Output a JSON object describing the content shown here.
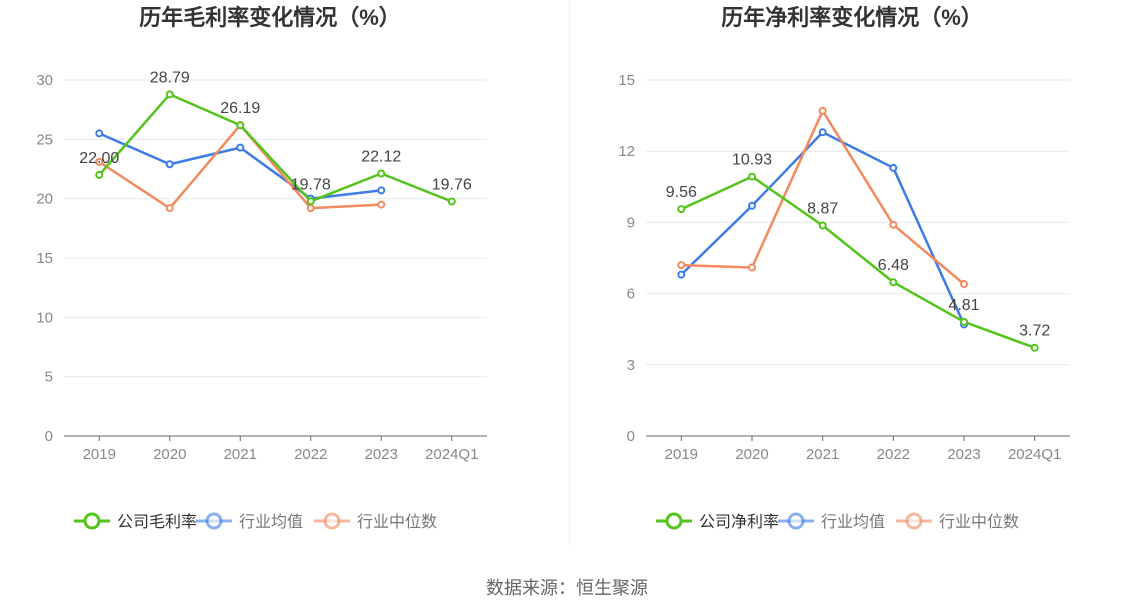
{
  "colors": {
    "company": "#52c41a",
    "avg": "#3d7ce6",
    "median": "#f28a5f"
  },
  "source": "数据来源：恒生聚源",
  "chart_data": [
    {
      "type": "line",
      "title": "历年毛利率变化情况（%）",
      "categories": [
        "2019",
        "2020",
        "2021",
        "2022",
        "2023",
        "2024Q1"
      ],
      "ylim": [
        0,
        30
      ],
      "yticks": [
        0,
        5,
        10,
        15,
        20,
        25,
        30
      ],
      "grid": true,
      "legend": "bottom",
      "series": [
        {
          "name": "公司毛利率",
          "color": "#52c41a",
          "values": [
            22.0,
            28.79,
            26.19,
            19.78,
            22.12,
            19.76
          ],
          "labels": [
            "22.00",
            "28.79",
            "26.19",
            "19.78",
            "22.12",
            "19.76"
          ]
        },
        {
          "name": "行业均值",
          "color": "#3d7ce6",
          "values": [
            25.5,
            22.9,
            24.3,
            20.0,
            20.7,
            null
          ]
        },
        {
          "name": "行业中位数",
          "color": "#f28a5f",
          "values": [
            23.1,
            19.2,
            26.2,
            19.2,
            19.5,
            null
          ]
        }
      ]
    },
    {
      "type": "line",
      "title": "历年净利率变化情况（%）",
      "categories": [
        "2019",
        "2020",
        "2021",
        "2022",
        "2023",
        "2024Q1"
      ],
      "ylim": [
        0,
        15
      ],
      "yticks": [
        0,
        3,
        6,
        9,
        12,
        15
      ],
      "grid": true,
      "legend": "bottom",
      "series": [
        {
          "name": "公司净利率",
          "color": "#52c41a",
          "values": [
            9.56,
            10.93,
            8.87,
            6.48,
            4.81,
            3.72
          ],
          "labels": [
            "9.56",
            "10.93",
            "8.87",
            "6.48",
            "4.81",
            "3.72"
          ]
        },
        {
          "name": "行业均值",
          "color": "#3d7ce6",
          "values": [
            6.8,
            9.7,
            12.8,
            11.3,
            4.7,
            null
          ]
        },
        {
          "name": "行业中位数",
          "color": "#f28a5f",
          "values": [
            7.2,
            7.1,
            13.7,
            8.9,
            6.4,
            null
          ]
        }
      ]
    }
  ]
}
